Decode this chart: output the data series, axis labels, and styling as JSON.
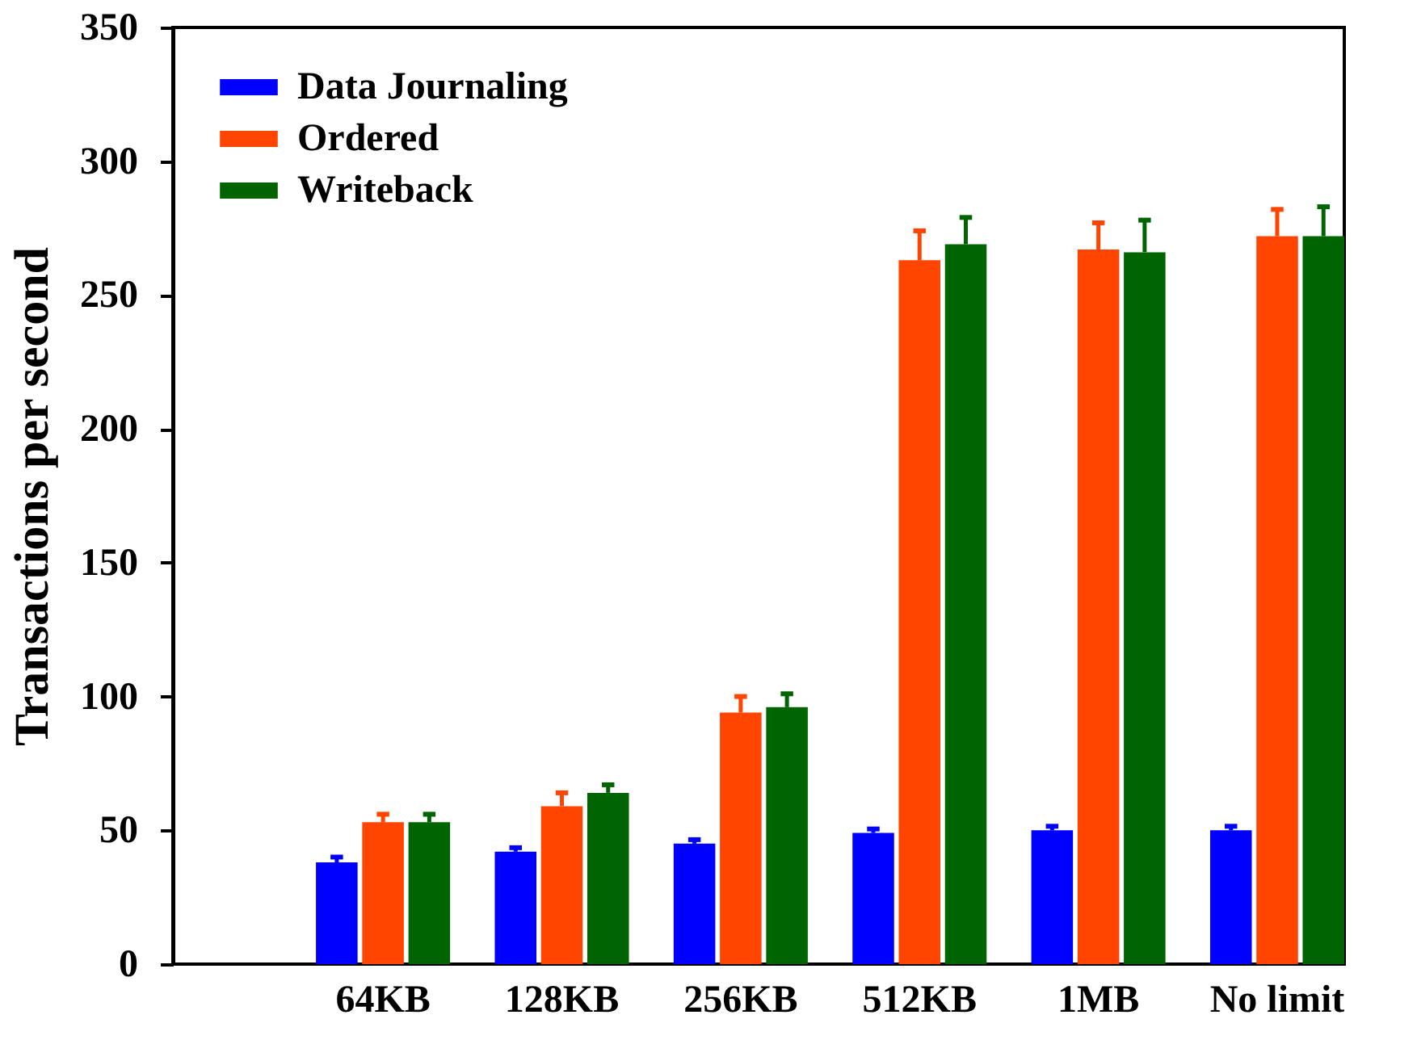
{
  "chart_data": {
    "type": "bar",
    "ylabel": "Transactions per second",
    "categories": [
      "64KB",
      "128KB",
      "256KB",
      "512KB",
      "1MB",
      "No limit"
    ],
    "ylim": [
      0,
      350
    ],
    "yticks": [
      0,
      50,
      100,
      150,
      200,
      250,
      300,
      350
    ],
    "grid": false,
    "legend": "top left",
    "series": [
      {
        "name": "Data Journaling",
        "color": "#0000ff",
        "values": [
          38,
          42,
          45,
          49,
          50,
          50
        ],
        "errors": [
          [
            38,
            40
          ],
          [
            42,
            43.5
          ],
          [
            45,
            46.5
          ],
          [
            49,
            50.5
          ],
          [
            50,
            51.5
          ],
          [
            50,
            51.5
          ]
        ]
      },
      {
        "name": "Ordered",
        "color": "#ff4500",
        "values": [
          53,
          59,
          94,
          263,
          267,
          272
        ],
        "errors": [
          [
            53,
            56
          ],
          [
            59,
            64
          ],
          [
            94,
            100
          ],
          [
            263,
            274
          ],
          [
            267,
            277
          ],
          [
            272,
            282
          ]
        ]
      },
      {
        "name": "Writeback",
        "color": "#006400",
        "values": [
          53,
          64,
          96,
          269,
          266,
          272
        ],
        "errors": [
          [
            53,
            56
          ],
          [
            64,
            67
          ],
          [
            96,
            101
          ],
          [
            269,
            279
          ],
          [
            266,
            278
          ],
          [
            272,
            283
          ]
        ]
      }
    ]
  }
}
